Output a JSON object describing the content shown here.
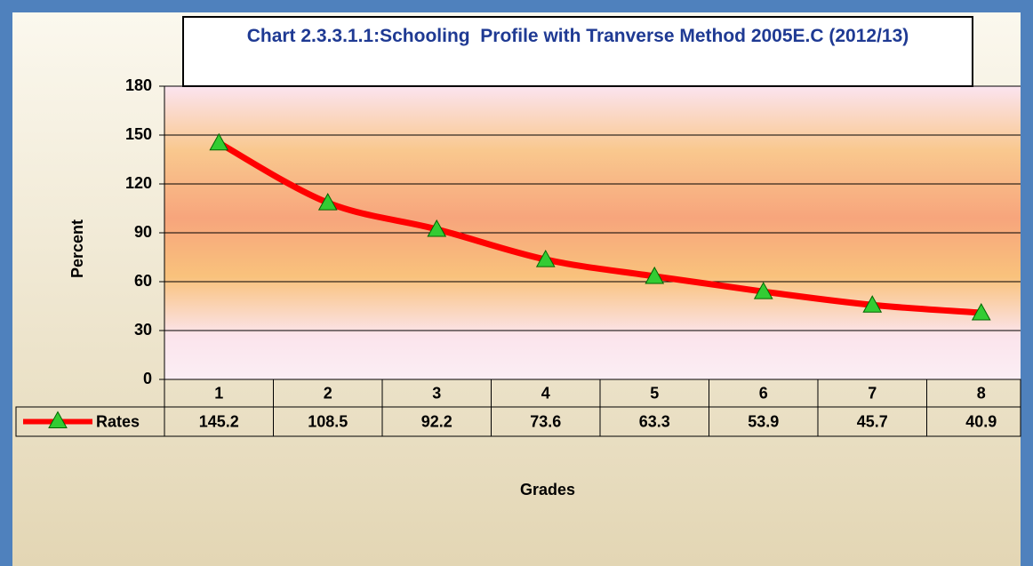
{
  "chart_data": {
    "type": "line",
    "title": "Chart 2.3.3.1.1:Schooling  Profile with Tranverse Method 2005E.C (2012/13)",
    "x_label": "Grades",
    "y_label": "Percent",
    "categories": [
      "1",
      "2",
      "3",
      "4",
      "5",
      "6",
      "7",
      "8"
    ],
    "series": [
      {
        "name": "Rates",
        "color": "#ff0000",
        "marker_color": "#33cc33",
        "values": [
          145.2,
          108.5,
          92.2,
          73.6,
          63.3,
          53.9,
          45.7,
          40.9
        ]
      }
    ],
    "ylim": [
      0,
      180
    ],
    "yticks": [
      0,
      30,
      60,
      90,
      120,
      150,
      180
    ],
    "grid": true
  }
}
